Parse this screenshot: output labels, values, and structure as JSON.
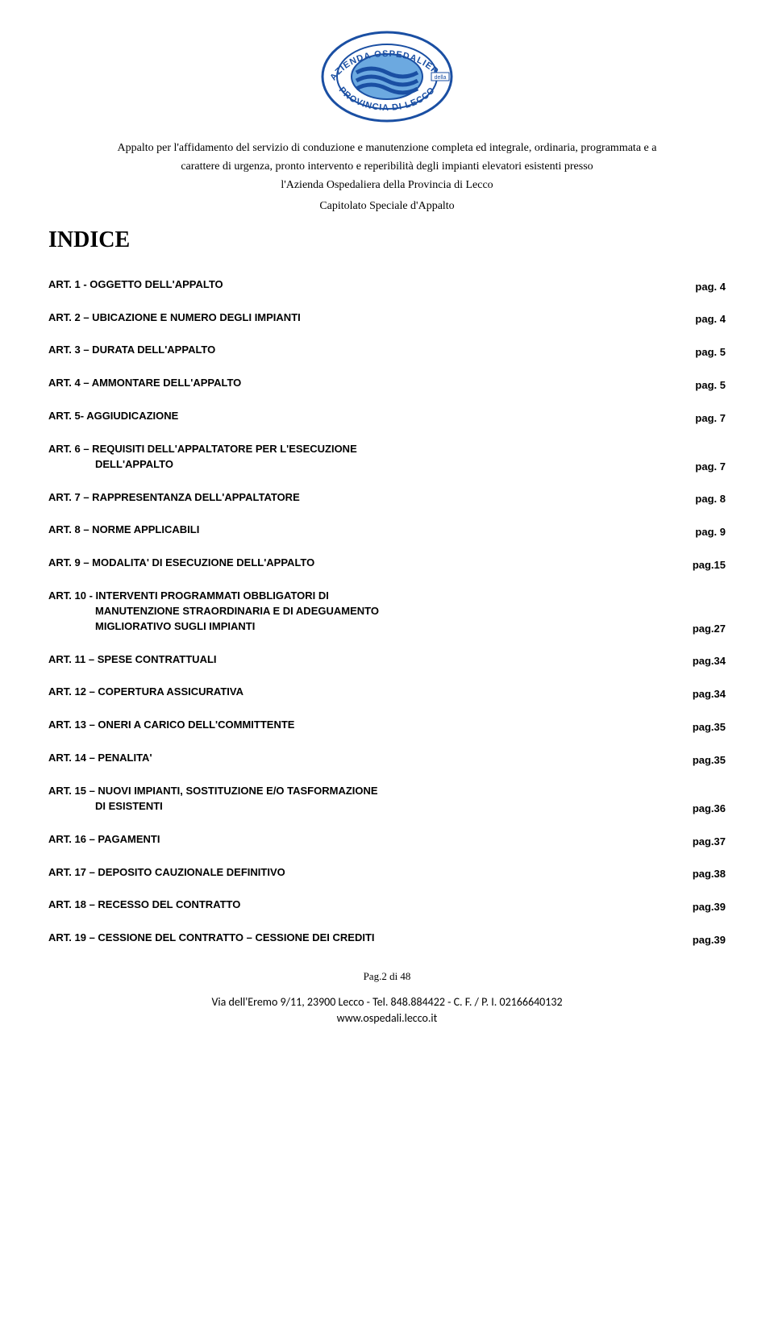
{
  "logo": {
    "outer_text_top": "AZIENDA OSPEDALIERA",
    "outer_text_bottom": "PROVINCIA DI LECCO",
    "mid_text": "della",
    "ring_color": "#1a4fa3",
    "ring_fill": "#ffffff",
    "inner_fill": "#6ca9e0",
    "wave_color": "#1a4fa3"
  },
  "header": {
    "line1": "Appalto per l'affidamento del servizio di conduzione e manutenzione completa ed integrale, ordinaria, programmata e a",
    "line2": "carattere di urgenza, pronto intervento e reperibilità degli impianti elevatori esistenti presso",
    "line3": "l'Azienda Ospedaliera della Provincia di Lecco",
    "capitolato": "Capitolato Speciale d'Appalto"
  },
  "indice_title": "INDICE",
  "toc": [
    {
      "label": "ART. 1 - OGGETTO DELL'APPALTO",
      "page": "pag. 4"
    },
    {
      "label": "ART. 2 – UBICAZIONE E NUMERO DEGLI IMPIANTI",
      "page": "pag. 4"
    },
    {
      "label": "ART. 3 – DURATA DELL'APPALTO",
      "page": "pag. 5"
    },
    {
      "label": "ART. 4 – AMMONTARE  DELL'APPALTO",
      "page": "pag. 5"
    },
    {
      "label": "ART. 5- AGGIUDICAZIONE",
      "page": "pag. 7"
    },
    {
      "label": "ART. 6 – REQUISITI DELL'APPALTATORE PER L'ESECUZIONE",
      "label2": "DELL'APPALTO",
      "page": "pag. 7"
    },
    {
      "label": "ART. 7 – RAPPRESENTANZA DELL'APPALTATORE",
      "page": "pag. 8"
    },
    {
      "label": "ART. 8 – NORME APPLICABILI",
      "page": "pag. 9"
    },
    {
      "label": "ART. 9 – MODALITA' DI ESECUZIONE DELL'APPALTO",
      "page": "pag.15"
    },
    {
      "label": "ART. 10 - INTERVENTI PROGRAMMATI OBBLIGATORI DI",
      "label2": "MANUTENZIONE STRAORDINARIA E DI ADEGUAMENTO",
      "label3": "MIGLIORATIVO SUGLI IMPIANTI",
      "page": "pag.27"
    },
    {
      "label": "ART. 11 – SPESE CONTRATTUALI",
      "page": "pag.34"
    },
    {
      "label": "ART. 12 – COPERTURA ASSICURATIVA",
      "page": "pag.34"
    },
    {
      "label": "ART. 13 – ONERI A CARICO DELL'COMMITTENTE",
      "page": "pag.35"
    },
    {
      "label": "ART. 14 – PENALITA'",
      "page": "pag.35"
    },
    {
      "label": "ART. 15 – NUOVI IMPIANTI, SOSTITUZIONE E/O TASFORMAZIONE",
      "label2": "DI ESISTENTI",
      "page": "pag.36"
    },
    {
      "label": "ART. 16 – PAGAMENTI",
      "page": "pag.37"
    },
    {
      "label": "ART. 17 – DEPOSITO CAUZIONALE DEFINITIVO",
      "page": "pag.38"
    },
    {
      "label": "ART. 18 – RECESSO DEL CONTRATTO",
      "page": "pag.39"
    },
    {
      "label": "ART. 19 – CESSIONE DEL CONTRATTO – CESSIONE DEI CREDITI",
      "page": "pag.39"
    }
  ],
  "footer": {
    "pagenum": "Pag.2 di 48",
    "addr1": "Via dell'Eremo 9/11, 23900  Lecco - Tel. 848.884422 - C. F. /  P. I. 02166640132",
    "addr2": "www.ospedali.lecco.it"
  }
}
